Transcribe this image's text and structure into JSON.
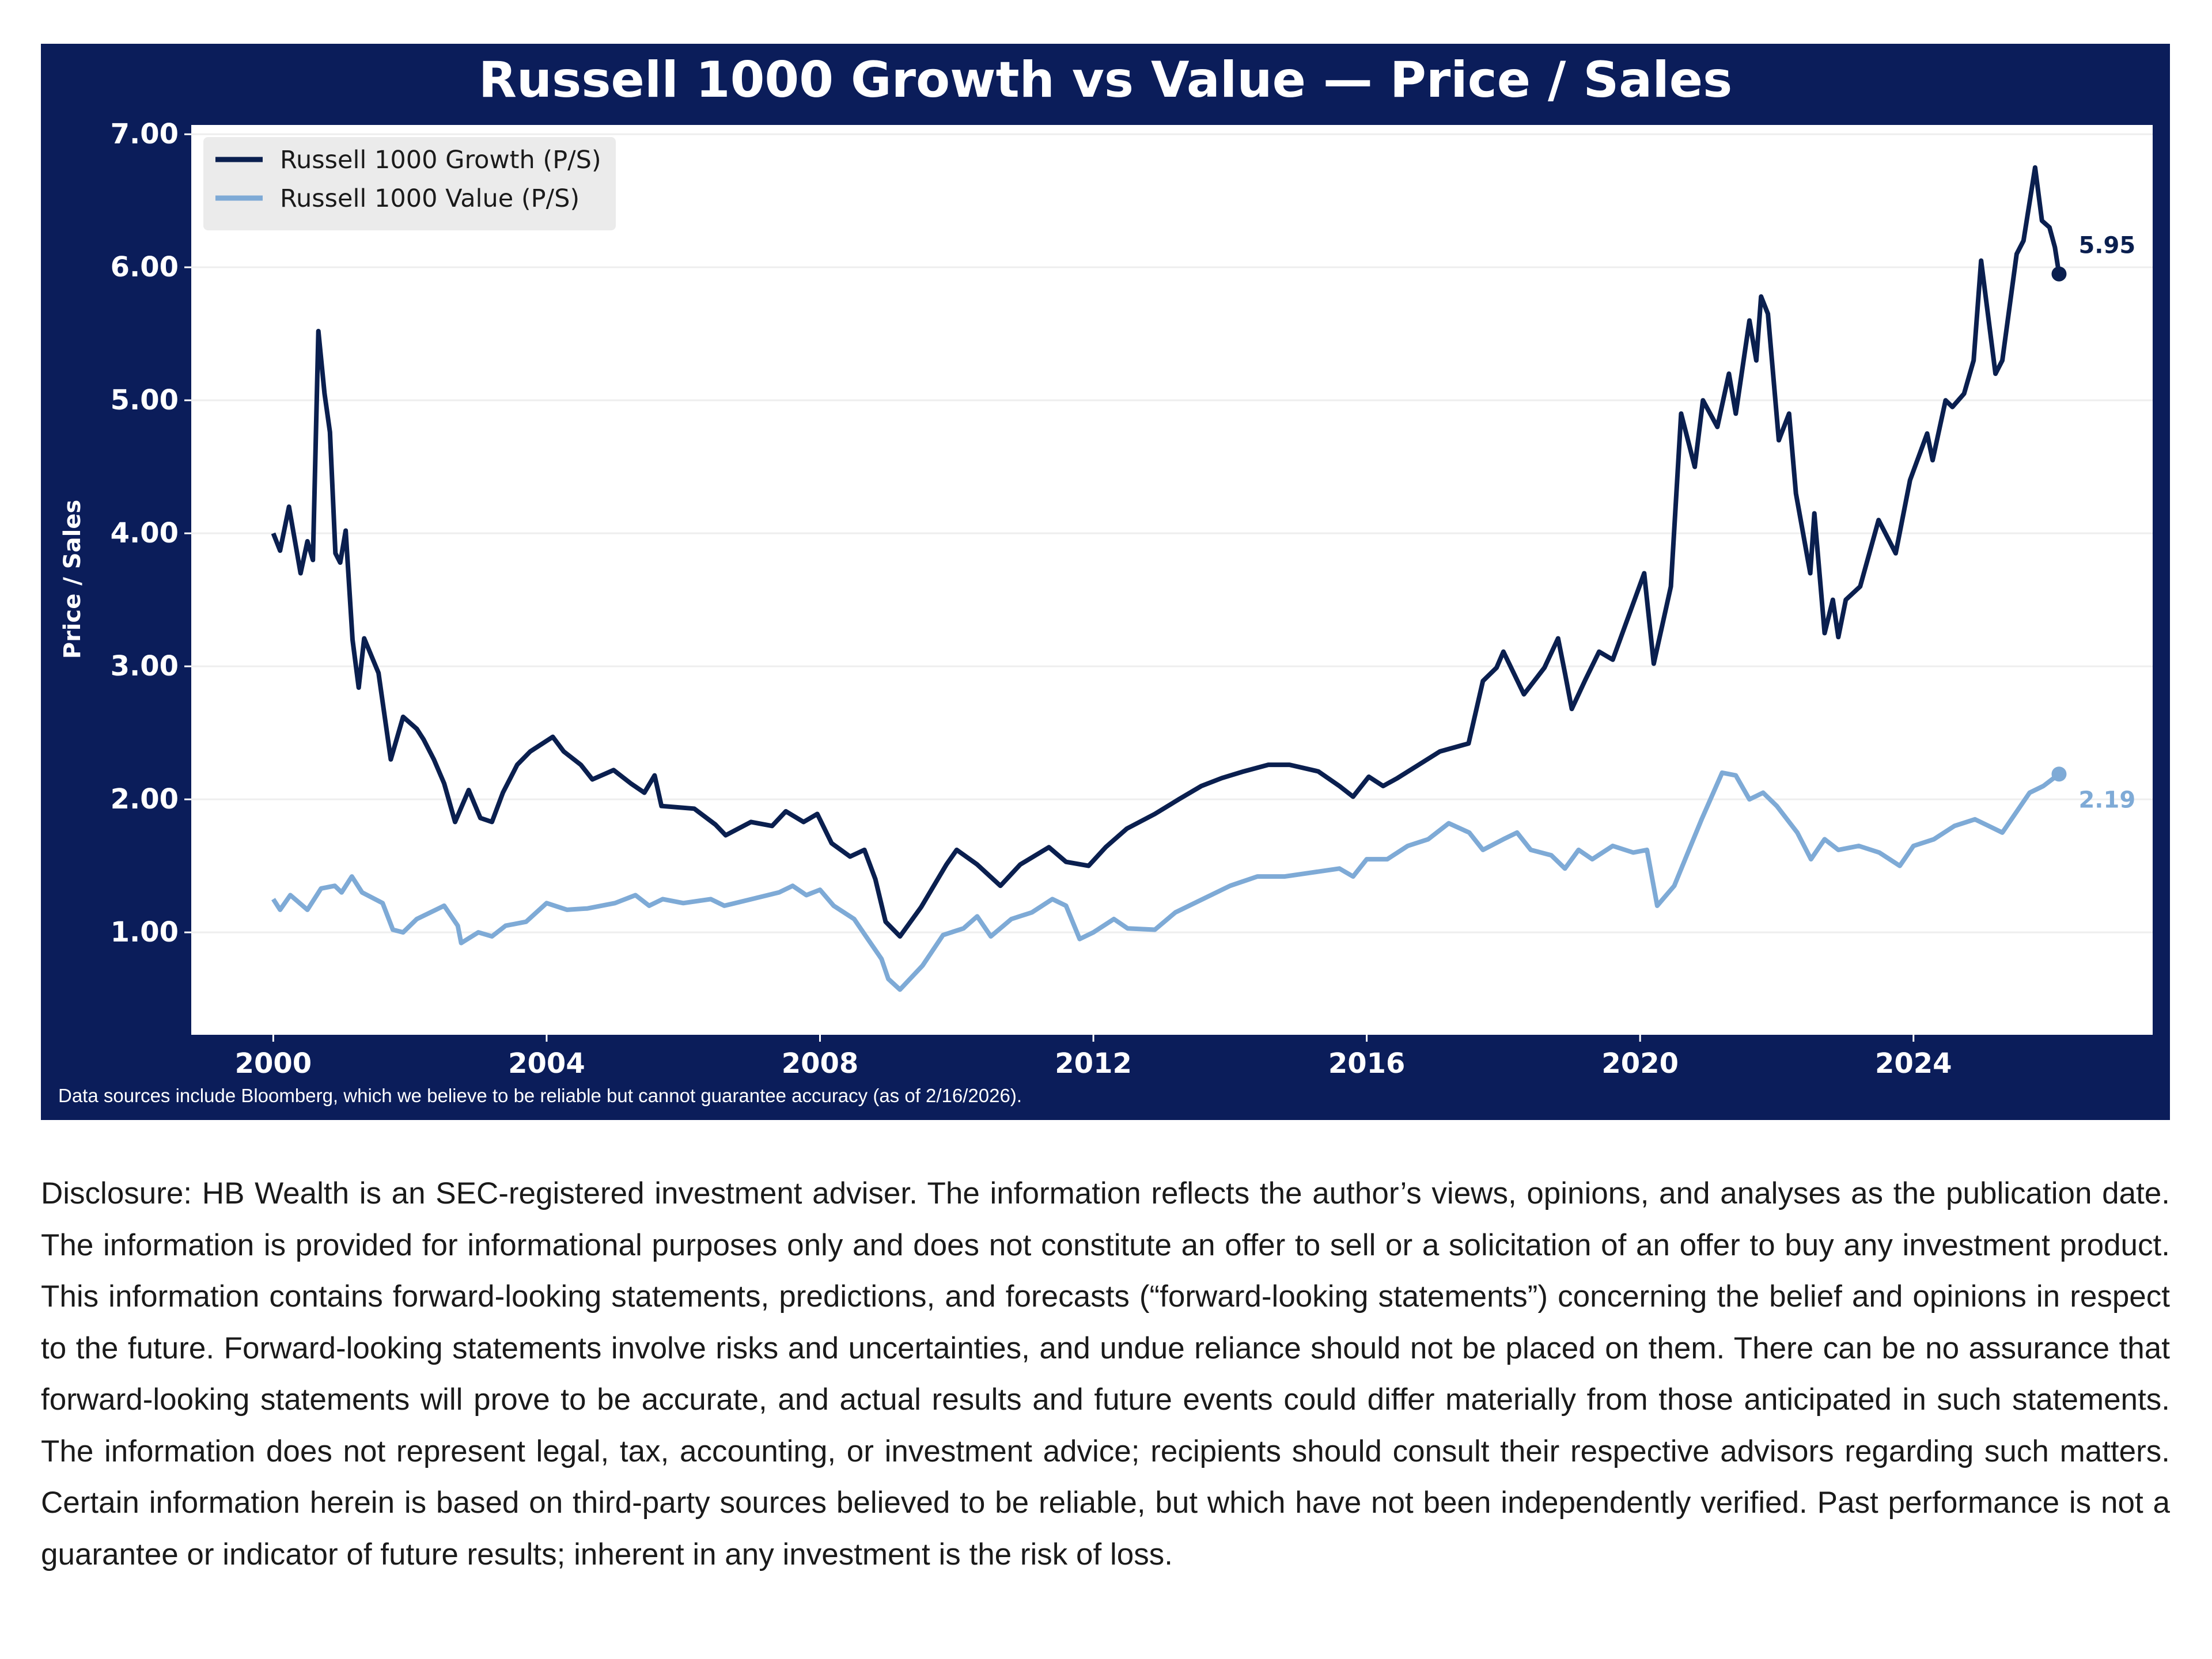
{
  "chart_data": {
    "type": "line",
    "title": "Russell 1000 Growth vs Value — Price / Sales",
    "ylabel": "Price / Sales",
    "xlabel": "",
    "footnote": "Data sources include Bloomberg, which we believe to be reliable but cannot guarantee accuracy (as of 2/16/2026).",
    "xlim": [
      1998.8,
      2027.5
    ],
    "ylim": [
      0.23,
      7.07
    ],
    "x_ticks": [
      2000,
      2004,
      2008,
      2012,
      2016,
      2020,
      2024
    ],
    "x_tick_labels": [
      "2000",
      "2004",
      "2008",
      "2012",
      "2016",
      "2020",
      "2024"
    ],
    "y_ticks": [
      1,
      2,
      3,
      4,
      5,
      6,
      7
    ],
    "y_tick_labels": [
      "1.00",
      "2.00",
      "3.00",
      "4.00",
      "5.00",
      "6.00",
      "7.00"
    ],
    "grid": "horizontal",
    "legend_position": "top-left",
    "colors": {
      "frame": "#0b1d5a",
      "growth": "#0a1f4f",
      "value": "#7eaad6",
      "legend_bg": "#ebebeb",
      "grid": "#eeeeee"
    },
    "series": [
      {
        "name": "Russell 1000 Growth (P/S)",
        "end_label": "5.95",
        "points": [
          [
            2000.0,
            4.0
          ],
          [
            2000.1,
            3.87
          ],
          [
            2000.23,
            4.2
          ],
          [
            2000.4,
            3.7
          ],
          [
            2000.5,
            3.94
          ],
          [
            2000.58,
            3.8
          ],
          [
            2000.66,
            5.52
          ],
          [
            2000.75,
            5.05
          ],
          [
            2000.83,
            4.76
          ],
          [
            2000.91,
            3.85
          ],
          [
            2000.98,
            3.78
          ],
          [
            2001.06,
            4.02
          ],
          [
            2001.16,
            3.2
          ],
          [
            2001.25,
            2.84
          ],
          [
            2001.33,
            3.21
          ],
          [
            2001.54,
            2.95
          ],
          [
            2001.72,
            2.3
          ],
          [
            2001.9,
            2.62
          ],
          [
            2002.1,
            2.53
          ],
          [
            2002.2,
            2.45
          ],
          [
            2002.35,
            2.3
          ],
          [
            2002.5,
            2.12
          ],
          [
            2002.66,
            1.83
          ],
          [
            2002.86,
            2.07
          ],
          [
            2003.03,
            1.86
          ],
          [
            2003.2,
            1.83
          ],
          [
            2003.36,
            2.05
          ],
          [
            2003.57,
            2.26
          ],
          [
            2003.76,
            2.36
          ],
          [
            2004.09,
            2.47
          ],
          [
            2004.25,
            2.36
          ],
          [
            2004.5,
            2.26
          ],
          [
            2004.67,
            2.15
          ],
          [
            2004.98,
            2.22
          ],
          [
            2005.23,
            2.12
          ],
          [
            2005.43,
            2.05
          ],
          [
            2005.58,
            2.18
          ],
          [
            2005.68,
            1.95
          ],
          [
            2006.16,
            1.93
          ],
          [
            2006.47,
            1.81
          ],
          [
            2006.62,
            1.73
          ],
          [
            2006.99,
            1.83
          ],
          [
            2007.3,
            1.8
          ],
          [
            2007.5,
            1.91
          ],
          [
            2007.76,
            1.83
          ],
          [
            2007.96,
            1.89
          ],
          [
            2008.17,
            1.67
          ],
          [
            2008.44,
            1.57
          ],
          [
            2008.65,
            1.62
          ],
          [
            2008.81,
            1.4
          ],
          [
            2008.96,
            1.08
          ],
          [
            2009.17,
            0.97
          ],
          [
            2009.48,
            1.19
          ],
          [
            2009.85,
            1.51
          ],
          [
            2010.0,
            1.62
          ],
          [
            2010.3,
            1.51
          ],
          [
            2010.64,
            1.35
          ],
          [
            2010.93,
            1.51
          ],
          [
            2011.35,
            1.64
          ],
          [
            2011.6,
            1.53
          ],
          [
            2011.93,
            1.5
          ],
          [
            2012.18,
            1.64
          ],
          [
            2012.49,
            1.78
          ],
          [
            2012.9,
            1.89
          ],
          [
            2013.25,
            2.0
          ],
          [
            2013.58,
            2.1
          ],
          [
            2013.88,
            2.16
          ],
          [
            2014.2,
            2.21
          ],
          [
            2014.56,
            2.26
          ],
          [
            2014.87,
            2.26
          ],
          [
            2015.29,
            2.21
          ],
          [
            2015.6,
            2.1
          ],
          [
            2015.8,
            2.02
          ],
          [
            2016.03,
            2.17
          ],
          [
            2016.24,
            2.1
          ],
          [
            2016.45,
            2.16
          ],
          [
            2016.76,
            2.26
          ],
          [
            2017.07,
            2.36
          ],
          [
            2017.49,
            2.42
          ],
          [
            2017.7,
            2.89
          ],
          [
            2017.9,
            2.99
          ],
          [
            2018.0,
            3.11
          ],
          [
            2018.3,
            2.79
          ],
          [
            2018.6,
            2.99
          ],
          [
            2018.8,
            3.21
          ],
          [
            2018.9,
            2.95
          ],
          [
            2019.0,
            2.68
          ],
          [
            2019.2,
            2.9
          ],
          [
            2019.4,
            3.11
          ],
          [
            2019.6,
            3.05
          ],
          [
            2020.06,
            3.7
          ],
          [
            2020.2,
            3.02
          ],
          [
            2020.45,
            3.6
          ],
          [
            2020.6,
            4.9
          ],
          [
            2020.8,
            4.5
          ],
          [
            2020.92,
            5.0
          ],
          [
            2021.13,
            4.8
          ],
          [
            2021.3,
            5.2
          ],
          [
            2021.4,
            4.9
          ],
          [
            2021.6,
            5.6
          ],
          [
            2021.7,
            5.3
          ],
          [
            2021.77,
            5.78
          ],
          [
            2021.87,
            5.65
          ],
          [
            2022.03,
            4.7
          ],
          [
            2022.18,
            4.9
          ],
          [
            2022.28,
            4.3
          ],
          [
            2022.49,
            3.7
          ],
          [
            2022.55,
            4.15
          ],
          [
            2022.7,
            3.25
          ],
          [
            2022.82,
            3.5
          ],
          [
            2022.9,
            3.22
          ],
          [
            2023.01,
            3.5
          ],
          [
            2023.22,
            3.6
          ],
          [
            2023.49,
            4.1
          ],
          [
            2023.74,
            3.85
          ],
          [
            2023.95,
            4.4
          ],
          [
            2024.2,
            4.75
          ],
          [
            2024.28,
            4.55
          ],
          [
            2024.47,
            5.0
          ],
          [
            2024.57,
            4.95
          ],
          [
            2024.74,
            5.05
          ],
          [
            2024.88,
            5.3
          ],
          [
            2024.99,
            6.05
          ],
          [
            2025.2,
            5.2
          ],
          [
            2025.3,
            5.3
          ],
          [
            2025.51,
            6.1
          ],
          [
            2025.61,
            6.2
          ],
          [
            2025.78,
            6.75
          ],
          [
            2025.88,
            6.35
          ],
          [
            2025.99,
            6.3
          ],
          [
            2026.07,
            6.15
          ],
          [
            2026.13,
            5.95
          ]
        ]
      },
      {
        "name": "Russell 1000 Value (P/S)",
        "end_label": "2.19",
        "points": [
          [
            2000.0,
            1.25
          ],
          [
            2000.1,
            1.17
          ],
          [
            2000.25,
            1.28
          ],
          [
            2000.5,
            1.17
          ],
          [
            2000.7,
            1.33
          ],
          [
            2000.9,
            1.35
          ],
          [
            2001.0,
            1.3
          ],
          [
            2001.15,
            1.42
          ],
          [
            2001.3,
            1.3
          ],
          [
            2001.6,
            1.22
          ],
          [
            2001.75,
            1.02
          ],
          [
            2001.9,
            1.0
          ],
          [
            2002.1,
            1.1
          ],
          [
            2002.3,
            1.15
          ],
          [
            2002.5,
            1.2
          ],
          [
            2002.7,
            1.05
          ],
          [
            2002.75,
            0.92
          ],
          [
            2003.0,
            1.0
          ],
          [
            2003.2,
            0.97
          ],
          [
            2003.4,
            1.05
          ],
          [
            2003.7,
            1.08
          ],
          [
            2004.0,
            1.22
          ],
          [
            2004.3,
            1.17
          ],
          [
            2004.6,
            1.18
          ],
          [
            2005.0,
            1.22
          ],
          [
            2005.3,
            1.28
          ],
          [
            2005.5,
            1.2
          ],
          [
            2005.7,
            1.25
          ],
          [
            2006.0,
            1.22
          ],
          [
            2006.4,
            1.25
          ],
          [
            2006.6,
            1.2
          ],
          [
            2007.0,
            1.25
          ],
          [
            2007.4,
            1.3
          ],
          [
            2007.6,
            1.35
          ],
          [
            2007.8,
            1.28
          ],
          [
            2008.0,
            1.32
          ],
          [
            2008.2,
            1.2
          ],
          [
            2008.5,
            1.1
          ],
          [
            2008.7,
            0.95
          ],
          [
            2008.9,
            0.8
          ],
          [
            2009.0,
            0.65
          ],
          [
            2009.17,
            0.57
          ],
          [
            2009.5,
            0.75
          ],
          [
            2009.8,
            0.98
          ],
          [
            2010.1,
            1.03
          ],
          [
            2010.3,
            1.12
          ],
          [
            2010.5,
            0.97
          ],
          [
            2010.8,
            1.1
          ],
          [
            2011.1,
            1.15
          ],
          [
            2011.4,
            1.25
          ],
          [
            2011.6,
            1.2
          ],
          [
            2011.8,
            0.95
          ],
          [
            2012.0,
            1.0
          ],
          [
            2012.3,
            1.1
          ],
          [
            2012.5,
            1.03
          ],
          [
            2012.9,
            1.02
          ],
          [
            2013.2,
            1.15
          ],
          [
            2013.6,
            1.25
          ],
          [
            2014.0,
            1.35
          ],
          [
            2014.4,
            1.42
          ],
          [
            2014.8,
            1.42
          ],
          [
            2015.2,
            1.45
          ],
          [
            2015.6,
            1.48
          ],
          [
            2015.8,
            1.42
          ],
          [
            2016.0,
            1.55
          ],
          [
            2016.3,
            1.55
          ],
          [
            2016.6,
            1.65
          ],
          [
            2016.9,
            1.7
          ],
          [
            2017.2,
            1.82
          ],
          [
            2017.5,
            1.75
          ],
          [
            2017.7,
            1.62
          ],
          [
            2018.0,
            1.7
          ],
          [
            2018.2,
            1.75
          ],
          [
            2018.4,
            1.62
          ],
          [
            2018.7,
            1.58
          ],
          [
            2018.9,
            1.48
          ],
          [
            2019.1,
            1.62
          ],
          [
            2019.3,
            1.55
          ],
          [
            2019.6,
            1.65
          ],
          [
            2019.9,
            1.6
          ],
          [
            2020.1,
            1.62
          ],
          [
            2020.25,
            1.2
          ],
          [
            2020.5,
            1.35
          ],
          [
            2020.7,
            1.6
          ],
          [
            2020.9,
            1.85
          ],
          [
            2021.2,
            2.2
          ],
          [
            2021.4,
            2.18
          ],
          [
            2021.6,
            2.0
          ],
          [
            2021.8,
            2.05
          ],
          [
            2022.0,
            1.95
          ],
          [
            2022.3,
            1.75
          ],
          [
            2022.5,
            1.55
          ],
          [
            2022.7,
            1.7
          ],
          [
            2022.9,
            1.62
          ],
          [
            2023.2,
            1.65
          ],
          [
            2023.5,
            1.6
          ],
          [
            2023.8,
            1.5
          ],
          [
            2024.0,
            1.65
          ],
          [
            2024.3,
            1.7
          ],
          [
            2024.6,
            1.8
          ],
          [
            2024.9,
            1.85
          ],
          [
            2025.1,
            1.8
          ],
          [
            2025.3,
            1.75
          ],
          [
            2025.5,
            1.9
          ],
          [
            2025.7,
            2.05
          ],
          [
            2025.9,
            2.1
          ],
          [
            2026.13,
            2.19
          ]
        ]
      }
    ]
  },
  "disclosure": "Disclosure: HB Wealth is an SEC-registered investment adviser. The information reflects the author’s views, opinions, and analyses as the publication date. The information is provided for informational purposes only and does not constitute an offer to sell or a solicitation of an offer to buy any investment product. This information contains forward-looking statements, predictions, and forecasts (“forward-looking statements”) concerning the belief and opinions in respect to the future. Forward-looking statements involve risks and uncertainties, and undue reliance should not be placed on them. There can be no assurance that forward-looking statements will prove to be accurate, and actual results and future events could differ materially from those anticipated in such statements. The information does not represent legal, tax, accounting, or investment advice; recipients should consult their respective advisors regarding such matters. Certain information herein is based on third-party sources believed to be reliable, but which have not been independently verified. Past performance is not a guarantee or indicator of future results; inherent in any investment is the risk of loss."
}
